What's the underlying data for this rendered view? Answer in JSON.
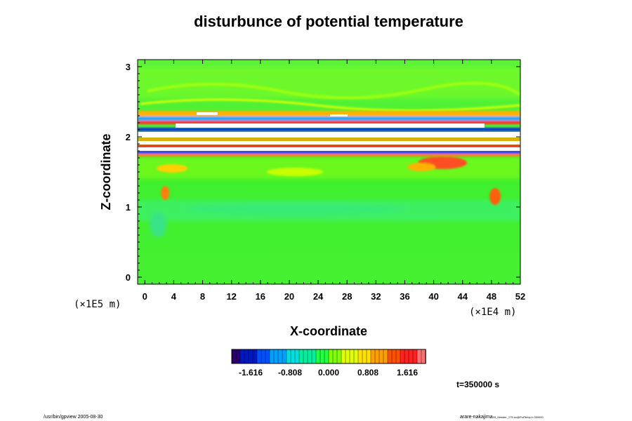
{
  "chart_data": {
    "type": "heatmap",
    "title": "disturbunce of potential temperature",
    "xlabel": "X-coordinate",
    "ylabel": "Z-coordinate",
    "x_scale_note": "(×1E4 m)",
    "y_scale_note": "(×1E5 m)",
    "xlim": [
      -1,
      52
    ],
    "ylim": [
      -0.1,
      3.1
    ],
    "x_ticks": [
      "0",
      "4",
      "8",
      "12",
      "16",
      "20",
      "24",
      "28",
      "32",
      "36",
      "40",
      "44",
      "48",
      "52"
    ],
    "y_ticks": [
      "0",
      "1",
      "2",
      "3"
    ],
    "colorbar": {
      "ticks": [
        "-1.616",
        "-0.808",
        "0.000",
        "0.808",
        "1.616"
      ],
      "colors": [
        "#2a0070",
        "#0018c0",
        "#0050ff",
        "#00a0ff",
        "#00e0e0",
        "#00f0a0",
        "#20ff40",
        "#80ff00",
        "#e0ff00",
        "#ffe000",
        "#ffa000",
        "#ff5000",
        "#ff2020",
        "#ff7070"
      ]
    },
    "time_label": "t=350000 s"
  },
  "footer": {
    "left": "/usr/bin/gpview 2005-08-30",
    "right_main": "arare-nakajima",
    "right_sub": "03_Kessler_175.nc@PotTemp,t=350000"
  }
}
